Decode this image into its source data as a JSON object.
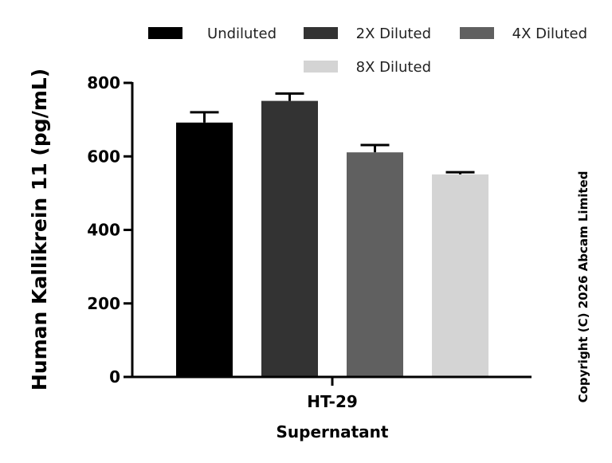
{
  "chart_data": {
    "type": "bar",
    "ylabel": "Human Kallikrein 11 (pg/mL)",
    "category_lines": [
      "HT-29",
      "Supernatant"
    ],
    "ylim": [
      0,
      800
    ],
    "yticks": [
      0,
      200,
      400,
      600,
      800
    ],
    "grid": false,
    "legend_position": "top",
    "series": [
      {
        "name": "Undiluted",
        "value": 692,
        "error": 28,
        "color": "#000000"
      },
      {
        "name": "2X Diluted",
        "value": 751,
        "error": 20,
        "color": "#333333"
      },
      {
        "name": "4X Diluted",
        "value": 611,
        "error": 20,
        "color": "#606060"
      },
      {
        "name": "8X Diluted",
        "value": 551,
        "error": 6,
        "color": "#d4d4d4"
      }
    ]
  },
  "copyright": "Copyright (C) 2026 Abcam Limited"
}
